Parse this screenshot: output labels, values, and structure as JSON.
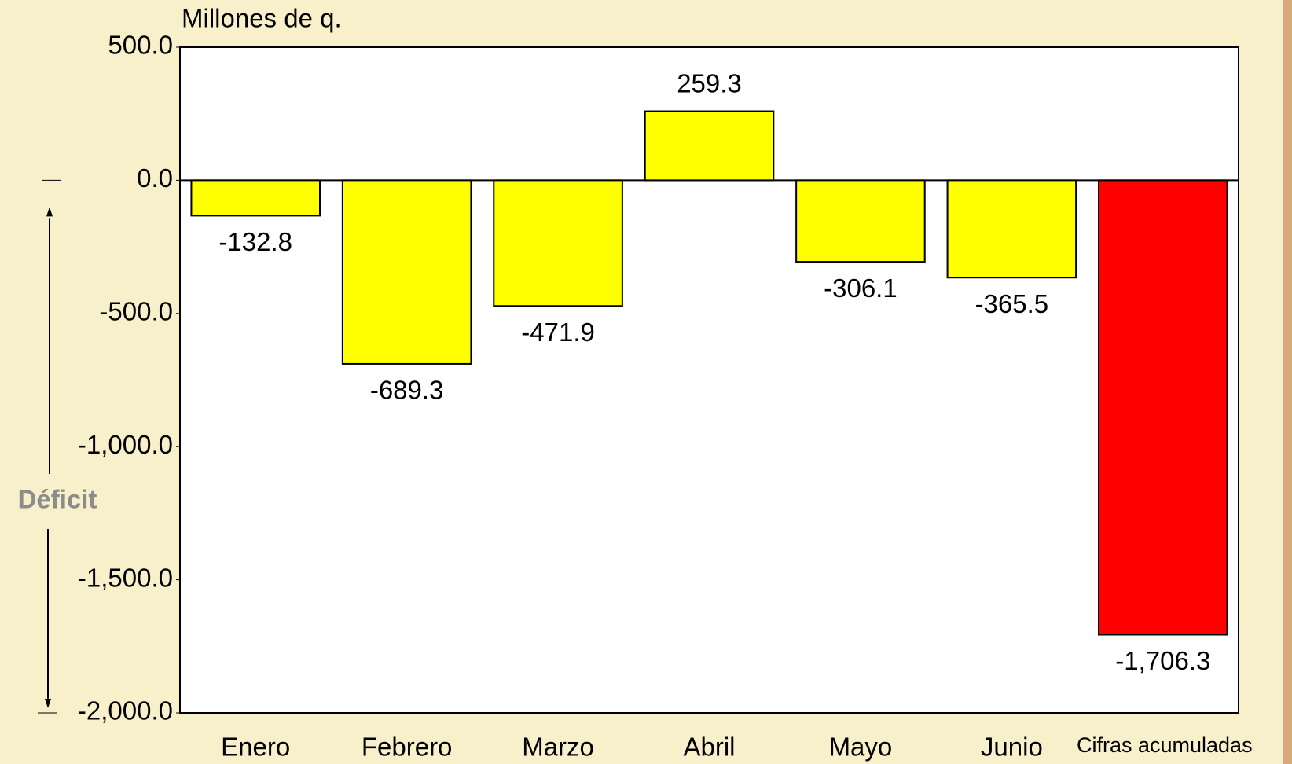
{
  "chart_data": {
    "type": "bar",
    "y_label": "Millones de q.",
    "annotation": "Déficit",
    "categories": [
      "Enero",
      "Febrero",
      "Marzo",
      "Abril",
      "Mayo",
      "Junio",
      "Cifras acumuladas"
    ],
    "values": [
      -132.8,
      -689.3,
      -471.9,
      259.3,
      -306.1,
      -365.5,
      -1706.3
    ],
    "value_labels": [
      "-132.8",
      "-689.3",
      "-471.9",
      "259.3",
      "-306.1",
      "-365.5",
      "-1,706.3"
    ],
    "colors": [
      "#ffff00",
      "#ffff00",
      "#ffff00",
      "#ffff00",
      "#ffff00",
      "#ffff00",
      "#ff0000"
    ],
    "ylim": [
      -2000,
      500
    ],
    "yticks": [
      {
        "value": -2000,
        "label": "-2,000.0"
      },
      {
        "value": -1500,
        "label": "-1,500.0"
      },
      {
        "value": -1000,
        "label": "-1,000.0"
      },
      {
        "value": -500,
        "label": "-500.0"
      },
      {
        "value": 0,
        "label": "0.0"
      },
      {
        "value": 500,
        "label": "500.0"
      }
    ],
    "grid": false
  }
}
